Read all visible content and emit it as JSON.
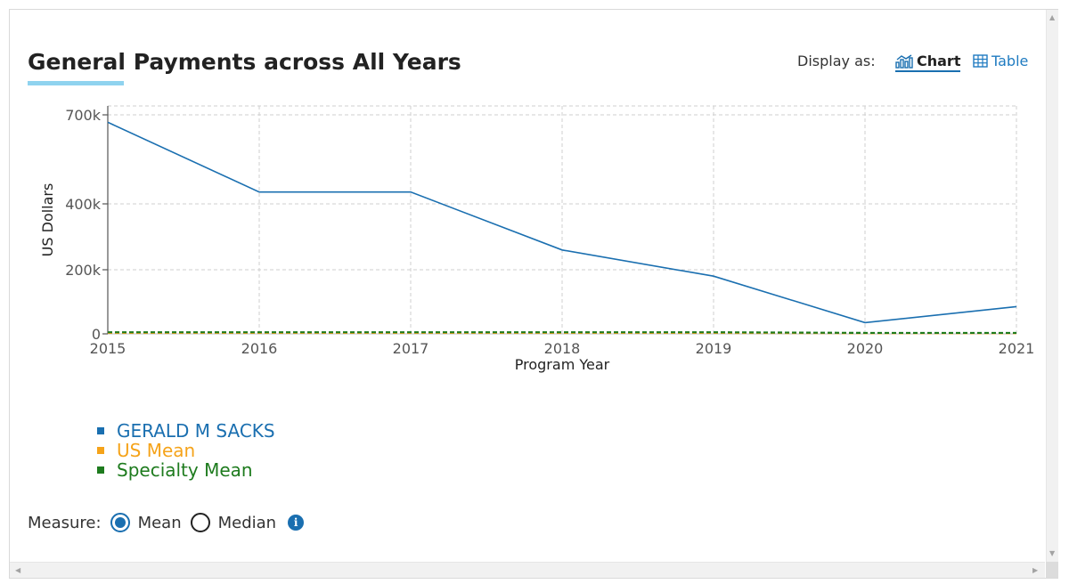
{
  "page": {
    "title": "General Payments across All Years",
    "display_as": {
      "label": "Display as:",
      "chart_label": "Chart",
      "table_label": "Table",
      "chart_icon": "bar-chart-icon",
      "table_icon": "table-grid-icon"
    },
    "measure": {
      "label": "Measure:",
      "options": [
        "Mean",
        "Median"
      ],
      "selected": "Mean",
      "info_icon": "info-icon",
      "info_glyph": "i"
    }
  },
  "colors": {
    "primary": "#1a6fb0",
    "us_mean": "#f5a31a",
    "specialty_mean": "#1e7b1e",
    "accent_underline": "#8fd3ef"
  },
  "chart_data": {
    "type": "line",
    "xlabel": "Program Year",
    "ylabel": "US Dollars",
    "x": [
      2015,
      2016,
      2017,
      2018,
      2019,
      2020,
      2021
    ],
    "y_ticks": [
      {
        "value": 0,
        "label": "0"
      },
      {
        "value": 200000,
        "label": "200k"
      },
      {
        "value": 400000,
        "label": "400k"
      },
      {
        "value": 700000,
        "label": "700k"
      }
    ],
    "series": [
      {
        "name": "GERALD M SACKS",
        "color": "#1a6fb0",
        "style": "solid",
        "values": [
          675000,
          440000,
          440000,
          260000,
          180000,
          35000,
          85000
        ]
      },
      {
        "name": "US Mean",
        "color": "#f5a31a",
        "style": "dashed",
        "values": [
          3000,
          3000,
          3000,
          3000,
          3000,
          2000,
          2000
        ]
      },
      {
        "name": "Specialty Mean",
        "color": "#1e7b1e",
        "style": "dashed",
        "values": [
          5000,
          5000,
          5000,
          5000,
          5000,
          3000,
          3000
        ]
      }
    ],
    "grid": true,
    "legend_position": "bottom-left"
  }
}
